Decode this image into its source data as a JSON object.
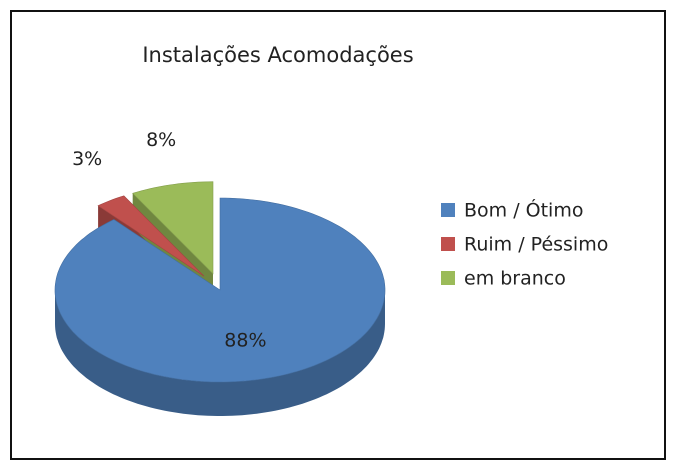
{
  "chart_data": {
    "type": "pie",
    "title": "Instalações Acomodações",
    "categories": [
      "Bom / Ótimo",
      "Ruim / Péssimo",
      "em branco"
    ],
    "values": [
      88,
      3,
      8
    ],
    "value_labels": [
      "88%",
      "3%",
      "8%"
    ],
    "colors": [
      "#4f81bd",
      "#c0504d",
      "#9bbb59"
    ],
    "legend": "right",
    "three_d": true
  }
}
